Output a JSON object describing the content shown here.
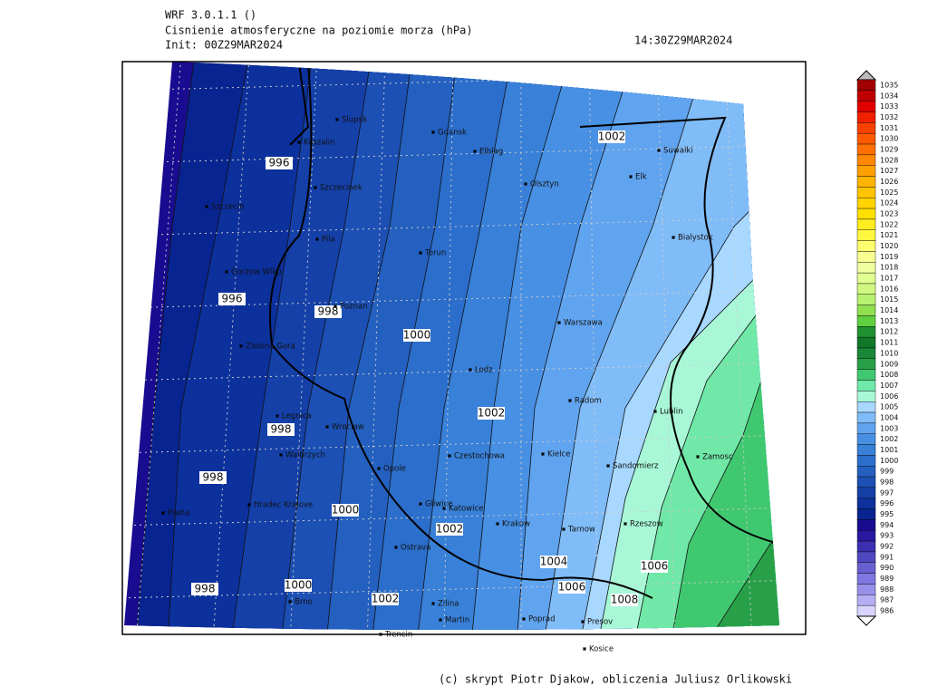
{
  "header": {
    "model": "WRF 3.0.1.1 ()",
    "title": "Cisnienie atmosferyczne na poziomie morza (hPa)",
    "init": "Init: 00Z29MAR2024",
    "valid": "14:30Z29MAR2024"
  },
  "footer": "(c) skrypt Piotr Djakow, obliczenia Juliusz Orlikowski",
  "colorbar": {
    "levels": [
      1035,
      1034,
      1033,
      1032,
      1031,
      1030,
      1029,
      1028,
      1027,
      1026,
      1025,
      1024,
      1023,
      1022,
      1021,
      1020,
      1019,
      1018,
      1017,
      1016,
      1015,
      1014,
      1013,
      1012,
      1011,
      1010,
      1009,
      1008,
      1007,
      1006,
      1005,
      1004,
      1003,
      1002,
      1001,
      1000,
      999,
      998,
      997,
      996,
      995,
      994,
      993,
      992,
      991,
      990,
      989,
      988,
      987,
      986
    ],
    "colors": [
      "#a00000",
      "#c00000",
      "#e00000",
      "#f02000",
      "#f84000",
      "#ff5a00",
      "#ff7000",
      "#ff8800",
      "#ffa000",
      "#ffb400",
      "#ffc400",
      "#ffd400",
      "#ffe000",
      "#ffee20",
      "#fff640",
      "#ffff70",
      "#f8ff90",
      "#f0ffa0",
      "#e0ff90",
      "#d0f880",
      "#b8f070",
      "#90e050",
      "#60d040",
      "#209030",
      "#107828",
      "#188838",
      "#28a048",
      "#40c870",
      "#70e8a8",
      "#a8f8d8",
      "#a8d8ff",
      "#80bcf8",
      "#60a4f0",
      "#4890e4",
      "#3880d8",
      "#2c6ecc",
      "#2460c0",
      "#1c50b4",
      "#1440a8",
      "#0c309c",
      "#082490",
      "#1a0c90",
      "#2a18a0",
      "#3c30b0",
      "#5048c0",
      "#6860d0",
      "#8078e0",
      "#9890ea",
      "#b4aef4",
      "#d8d4ff"
    ]
  },
  "contour_labels": [
    "996",
    "996",
    "998",
    "1000",
    "998",
    "998",
    "1002",
    "1000",
    "1002",
    "1004",
    "1000",
    "998",
    "1002",
    "1006",
    "1006",
    "1008",
    "1002"
  ],
  "cities": [
    "Slupsk",
    "Gdansk",
    "Koszalin",
    "Elblag",
    "Suwalki",
    "Szczecinek",
    "Olsztyn",
    "Elk",
    "Szczecin",
    "Pila",
    "Torun",
    "Bialystok",
    "Gorzow Wlkp",
    "Poznan",
    "Warszawa",
    "Zielona Gora",
    "Lodz",
    "Radom",
    "Lublin",
    "Legnica",
    "Wroclaw",
    "Walbrzych",
    "Czestochowa",
    "Kielce",
    "Opole",
    "Zamosc",
    "Sandomierz",
    "Hradec Kralove",
    "Praha",
    "Gliwice",
    "Katowice",
    "Krakow",
    "Tarnow",
    "Rzeszow",
    "Ostrava",
    "Brno",
    "Zilina",
    "Martin",
    "Poprad",
    "Presov",
    "Trencin",
    "Kosice"
  ]
}
